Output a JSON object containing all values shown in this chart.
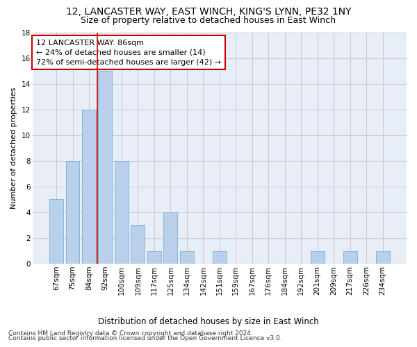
{
  "title": "12, LANCASTER WAY, EAST WINCH, KING'S LYNN, PE32 1NY",
  "subtitle": "Size of property relative to detached houses in East Winch",
  "xlabel": "Distribution of detached houses by size in East Winch",
  "ylabel": "Number of detached properties",
  "categories": [
    "67sqm",
    "75sqm",
    "84sqm",
    "92sqm",
    "100sqm",
    "109sqm",
    "117sqm",
    "125sqm",
    "134sqm",
    "142sqm",
    "151sqm",
    "159sqm",
    "167sqm",
    "176sqm",
    "184sqm",
    "192sqm",
    "201sqm",
    "209sqm",
    "217sqm",
    "226sqm",
    "234sqm"
  ],
  "values": [
    5,
    8,
    12,
    15,
    8,
    3,
    1,
    4,
    1,
    0,
    1,
    0,
    0,
    0,
    0,
    0,
    1,
    0,
    1,
    0,
    1
  ],
  "bar_color": "#b8d0ea",
  "bar_edge_color": "#7aafd4",
  "annotation_box_text": "12 LANCASTER WAY: 86sqm\n← 24% of detached houses are smaller (14)\n72% of semi-detached houses are larger (42) →",
  "annotation_box_color": "#ffffff",
  "annotation_box_edge_color": "#cc0000",
  "annotation_line_color": "#cc0000",
  "ylim": [
    0,
    18
  ],
  "yticks": [
    0,
    2,
    4,
    6,
    8,
    10,
    12,
    14,
    16,
    18
  ],
  "background_color": "#e8eef8",
  "grid_color": "#c8c8c8",
  "footer_line1": "Contains HM Land Registry data © Crown copyright and database right 2024.",
  "footer_line2": "Contains public sector information licensed under the Open Government Licence v3.0.",
  "title_fontsize": 10,
  "subtitle_fontsize": 9,
  "xlabel_fontsize": 8.5,
  "ylabel_fontsize": 8,
  "annotation_fontsize": 8,
  "tick_fontsize": 7.5,
  "footer_fontsize": 6.5
}
